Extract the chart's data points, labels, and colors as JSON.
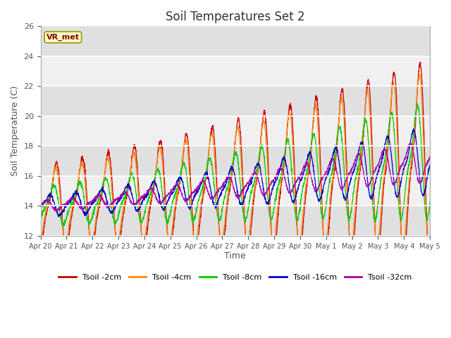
{
  "title": "Soil Temperatures Set 2",
  "xlabel": "Time",
  "ylabel": "Soil Temperature (C)",
  "ylim": [
    12,
    26
  ],
  "yticks": [
    12,
    14,
    16,
    18,
    20,
    22,
    24,
    26
  ],
  "x_labels": [
    "Apr 20",
    "Apr 21",
    "Apr 22",
    "Apr 23",
    "Apr 24",
    "Apr 25",
    "Apr 26",
    "Apr 27",
    "Apr 28",
    "Apr 29",
    "Apr 30",
    "May 1",
    "May 2",
    "May 3",
    "May 4",
    "May 5"
  ],
  "series_colors": [
    "#cc0000",
    "#ff8800",
    "#00cc00",
    "#0000cc",
    "#aa00aa"
  ],
  "series_labels": [
    "Tsoil -2cm",
    "Tsoil -4cm",
    "Tsoil -8cm",
    "Tsoil -16cm",
    "Tsoil -32cm"
  ],
  "annotation_text": "VR_met",
  "annotation_color": "#8b0000",
  "annotation_bg": "#ffffcc",
  "annotation_edge": "#999900",
  "background_color": "#ffffff",
  "plot_bg_light": "#f0f0f0",
  "plot_bg_dark": "#e0e0e0",
  "grid_color": "#ffffff",
  "title_fontsize": 12,
  "axis_fontsize": 9,
  "tick_fontsize": 8
}
